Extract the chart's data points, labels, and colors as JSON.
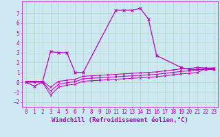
{
  "title": "",
  "xlabel": "Windchill (Refroidissement éolien,°C)",
  "background_color": "#cde8f0",
  "grid_color": "#b0d8c8",
  "line_color": "#bb00bb",
  "xlim": [
    -0.5,
    23.5
  ],
  "ylim": [
    -2.5,
    8.2
  ],
  "xticks": [
    0,
    1,
    2,
    3,
    4,
    5,
    6,
    7,
    8,
    9,
    10,
    11,
    12,
    13,
    14,
    15,
    16,
    17,
    18,
    19,
    20,
    21,
    22,
    23
  ],
  "yticks": [
    -2,
    -1,
    0,
    1,
    2,
    3,
    4,
    5,
    6,
    7
  ],
  "series0": {
    "x": [
      0,
      1,
      2,
      3,
      4,
      5,
      6,
      7,
      11,
      12,
      13,
      14,
      15,
      16,
      19,
      20,
      21,
      22,
      23
    ],
    "y": [
      0,
      -0.4,
      0,
      3.1,
      3.0,
      3.0,
      1.0,
      1.0,
      7.3,
      7.3,
      7.3,
      7.5,
      6.4,
      2.7,
      1.5,
      1.3,
      1.3,
      1.3,
      1.3
    ]
  },
  "series1": {
    "x": [
      0,
      1,
      2,
      3,
      4,
      5,
      6,
      7,
      8,
      9,
      10,
      11,
      12,
      13,
      14,
      15,
      16,
      17,
      18,
      19,
      20,
      21,
      22,
      23
    ],
    "y": [
      0.0,
      0.0,
      0.0,
      -1.3,
      -0.5,
      -0.3,
      -0.2,
      0.1,
      0.15,
      0.2,
      0.25,
      0.3,
      0.35,
      0.4,
      0.45,
      0.5,
      0.55,
      0.65,
      0.75,
      0.85,
      0.9,
      1.0,
      1.35,
      1.35
    ]
  },
  "series2": {
    "x": [
      0,
      1,
      2,
      3,
      4,
      5,
      6,
      7,
      8,
      9,
      10,
      11,
      12,
      13,
      14,
      15,
      16,
      17,
      18,
      19,
      20,
      21,
      22,
      23
    ],
    "y": [
      0.05,
      0.05,
      0.05,
      -0.9,
      -0.2,
      -0.05,
      0.05,
      0.35,
      0.4,
      0.45,
      0.5,
      0.55,
      0.6,
      0.65,
      0.7,
      0.75,
      0.8,
      0.9,
      1.0,
      1.1,
      1.15,
      1.25,
      1.4,
      1.4
    ]
  },
  "series3": {
    "x": [
      0,
      1,
      2,
      3,
      4,
      5,
      6,
      7,
      8,
      9,
      10,
      11,
      12,
      13,
      14,
      15,
      16,
      17,
      18,
      19,
      20,
      21,
      22,
      23
    ],
    "y": [
      0.1,
      0.1,
      0.1,
      -0.5,
      0.1,
      0.2,
      0.3,
      0.6,
      0.65,
      0.7,
      0.75,
      0.8,
      0.85,
      0.9,
      0.95,
      1.0,
      1.05,
      1.15,
      1.25,
      1.35,
      1.4,
      1.5,
      1.45,
      1.45
    ]
  },
  "xlabel_fontsize": 6.5,
  "tick_fontsize": 5.5,
  "tick_color": "#bb00bb",
  "axis_color": "#bb00bb",
  "lw0": 0.9,
  "lw1": 0.75
}
